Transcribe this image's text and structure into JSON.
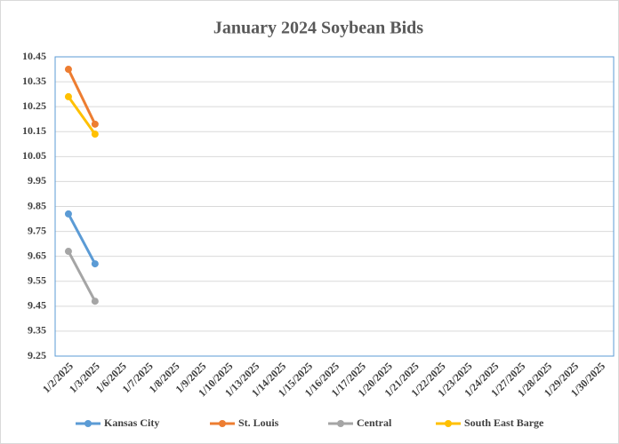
{
  "chart_data": {
    "type": "line",
    "title": "January 2024 Soybean Bids",
    "categories": [
      "1/2/2025",
      "1/3/2025",
      "1/6/2025",
      "1/7/2025",
      "1/8/2025",
      "1/9/2025",
      "1/10/2025",
      "1/13/2025",
      "1/14/2025",
      "1/15/2025",
      "1/16/2025",
      "1/17/2025",
      "1/20/2025",
      "1/21/2025",
      "1/22/2025",
      "1/23/2025",
      "1/24/2025",
      "1/27/2025",
      "1/28/2025",
      "1/29/2025",
      "1/30/2025"
    ],
    "series": [
      {
        "name": "Kansas City",
        "color": "#5b9bd5",
        "values": [
          9.82,
          9.62,
          null,
          null,
          null,
          null,
          null,
          null,
          null,
          null,
          null,
          null,
          null,
          null,
          null,
          null,
          null,
          null,
          null,
          null,
          null
        ]
      },
      {
        "name": "St. Louis",
        "color": "#ed7d31",
        "values": [
          10.4,
          10.18,
          null,
          null,
          null,
          null,
          null,
          null,
          null,
          null,
          null,
          null,
          null,
          null,
          null,
          null,
          null,
          null,
          null,
          null,
          null
        ]
      },
      {
        "name": "Central",
        "color": "#a5a5a5",
        "values": [
          9.67,
          9.47,
          null,
          null,
          null,
          null,
          null,
          null,
          null,
          null,
          null,
          null,
          null,
          null,
          null,
          null,
          null,
          null,
          null,
          null,
          null
        ]
      },
      {
        "name": "South East Barge",
        "color": "#ffc000",
        "values": [
          10.29,
          10.14,
          null,
          null,
          null,
          null,
          null,
          null,
          null,
          null,
          null,
          null,
          null,
          null,
          null,
          null,
          null,
          null,
          null,
          null,
          null
        ]
      }
    ],
    "ylim": [
      9.25,
      10.45
    ],
    "yticks": [
      9.25,
      9.35,
      9.45,
      9.55,
      9.65,
      9.75,
      9.85,
      9.95,
      10.05,
      10.15,
      10.25,
      10.35,
      10.45
    ],
    "grid": true,
    "legend": "bottom"
  }
}
